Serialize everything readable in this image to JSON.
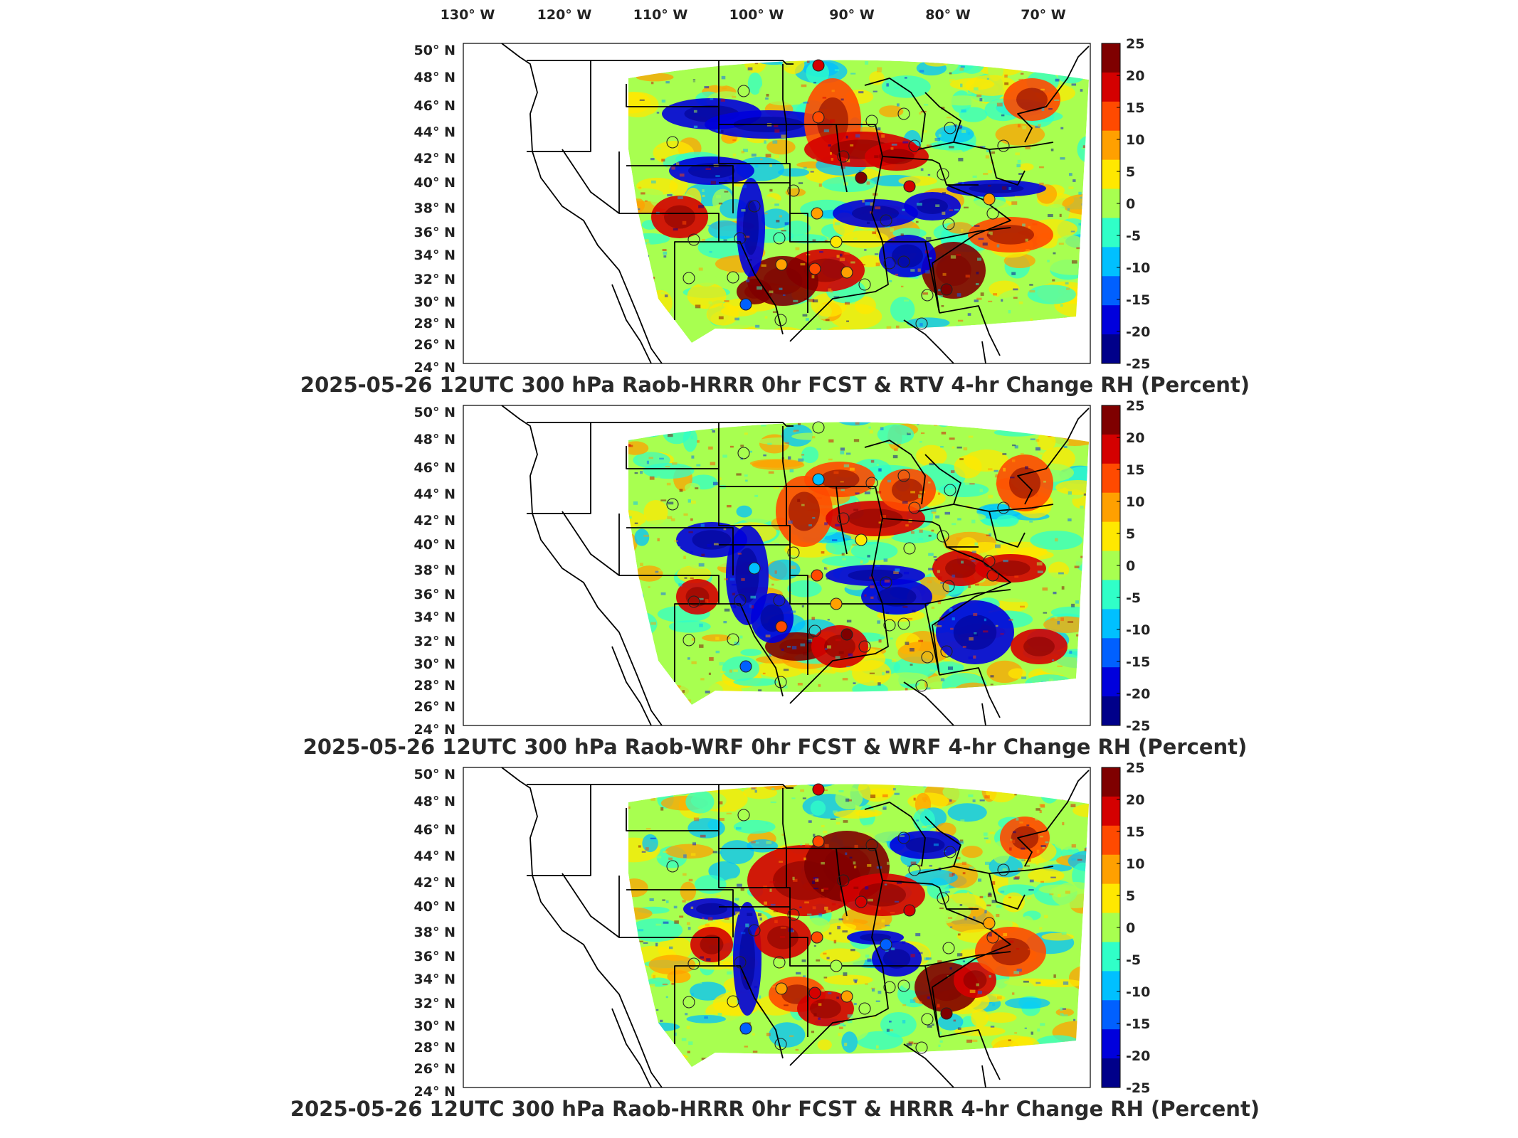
{
  "lon_labels": [
    "130° W",
    "120° W",
    "110° W",
    "100° W",
    "90° W",
    "80° W",
    "70° W"
  ],
  "lat_labels": [
    "50° N",
    "48° N",
    "46° N",
    "44° N",
    "42° N",
    "40° N",
    "38° N",
    "36° N",
    "34° N",
    "32° N",
    "30° N",
    "28° N",
    "26° N",
    "24° N"
  ],
  "colorbar_ticks": [
    "25",
    "20",
    "15",
    "10",
    "5",
    "0",
    "-5",
    "-10",
    "-15",
    "-20",
    "-25"
  ],
  "colors": {
    "colormap": [
      "#7f0000",
      "#d40000",
      "#ff4a00",
      "#ffa000",
      "#ffe800",
      "#a8ff50",
      "#30ffc8",
      "#00c0ff",
      "#0060ff",
      "#0000dc",
      "#00008a"
    ]
  },
  "panels": [
    {
      "title": "2025-05-26 12UTC 300 hPa Raob-HRRR 0hr FCST & RTV 4-hr Change RH (Percent)"
    },
    {
      "title": "2025-05-26 12UTC 300 hPa Raob-WRF 0hr FCST & WRF 4-hr Change RH (Percent)"
    },
    {
      "title": "2025-05-26 12UTC 300 hPa Raob-HRRR 0hr FCST & HRRR 4-hr Change RH (Percent)"
    }
  ]
}
